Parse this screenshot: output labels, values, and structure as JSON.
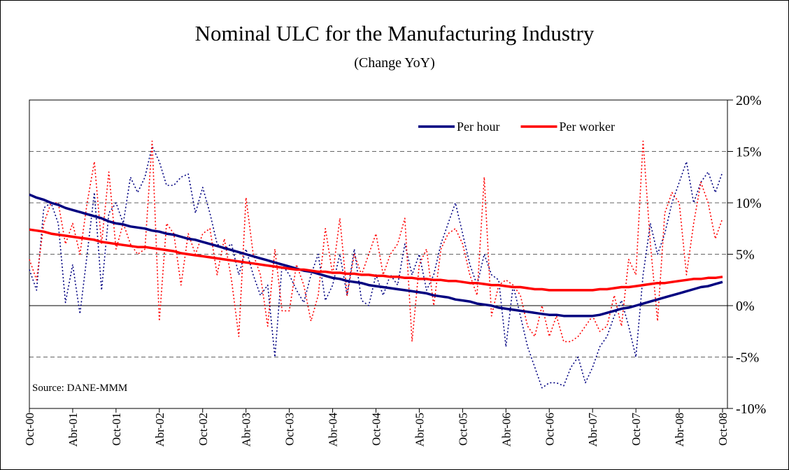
{
  "chart_data": {
    "type": "line",
    "title": "Nominal ULC for the Manufacturing Industry",
    "subtitle": "(Change YoY)",
    "annotation": "Source: DANE-MMM",
    "categories": [
      "Oct-00",
      null,
      null,
      null,
      null,
      null,
      "Abr-01",
      null,
      null,
      null,
      null,
      null,
      "Oct-01",
      null,
      null,
      null,
      null,
      null,
      "Abr-02",
      null,
      null,
      null,
      null,
      null,
      "Oct-02",
      null,
      null,
      null,
      null,
      null,
      "Abr-03",
      null,
      null,
      null,
      null,
      null,
      "Oct-03",
      null,
      null,
      null,
      null,
      null,
      "Abr-04",
      null,
      null,
      null,
      null,
      null,
      "Oct-04",
      null,
      null,
      null,
      null,
      null,
      "Abr-05",
      null,
      null,
      null,
      null,
      null,
      "Oct-05",
      null,
      null,
      null,
      null,
      null,
      "Abr-06",
      null,
      null,
      null,
      null,
      null,
      "Oct-06",
      null,
      null,
      null,
      null,
      null,
      "Abr-07",
      null,
      null,
      null,
      null,
      null,
      "Oct-07",
      null,
      null,
      null,
      null,
      null,
      "Abr-08",
      null,
      null,
      null,
      null,
      null,
      "Oct-08"
    ],
    "series": [
      {
        "color": "#000080",
        "style": "dotted",
        "values": [
          3.5,
          1.5,
          9.5,
          10,
          8,
          0.3,
          4,
          -0.8,
          5,
          11,
          1.5,
          9,
          10,
          8,
          12.5,
          11,
          12.5,
          15.5,
          14,
          11.7,
          11.7,
          12.5,
          12.8,
          9,
          11.5,
          9,
          6,
          5.5,
          6,
          3,
          5.5,
          3,
          1,
          2,
          -5,
          4,
          3,
          1.5,
          0.3,
          3,
          5,
          0.5,
          2,
          5,
          1,
          5.5,
          0.5,
          0,
          3,
          1,
          3,
          2,
          6,
          3,
          5,
          1.5,
          3,
          6,
          8,
          10,
          7,
          4,
          2,
          5,
          3,
          2.5,
          -4,
          2,
          -1,
          -4,
          -6,
          -8,
          -7.5,
          -7.5,
          -7.8,
          -6,
          -5,
          -7.5,
          -6,
          -4,
          -3,
          -1,
          0.5,
          -2,
          -5,
          3,
          8,
          5,
          7,
          10,
          12,
          14,
          10,
          12,
          13,
          11,
          13
        ]
      },
      {
        "color": "#ff0000",
        "style": "dotted",
        "values": [
          4.5,
          2.5,
          8,
          10,
          10,
          6,
          8,
          5,
          10,
          14,
          6,
          13,
          5.5,
          8,
          6,
          5,
          5.5,
          16,
          -1.5,
          8,
          7,
          2,
          7,
          5,
          7,
          7.5,
          3,
          6.5,
          2.5,
          -3,
          10.5,
          5,
          3,
          -2,
          5.5,
          -0.5,
          -0.5,
          4,
          2,
          -1.5,
          1,
          7.5,
          3,
          8.5,
          1,
          5,
          3,
          5,
          7,
          3,
          5,
          6,
          8.5,
          -3.5,
          4,
          5.5,
          0,
          5.5,
          7,
          7.5,
          6,
          3,
          1,
          12.5,
          -1,
          2,
          2.5,
          2,
          1,
          -2,
          -3,
          0,
          -3,
          -1,
          -3.5,
          -3.5,
          -3,
          -2,
          -1,
          -2.5,
          -2,
          1,
          -2,
          4.5,
          3,
          16,
          6,
          -1.5,
          9,
          11,
          10,
          3,
          8,
          12,
          10,
          6.5,
          8.5
        ]
      },
      {
        "name": "Per hour",
        "color": "#000080",
        "style": "solid",
        "values": [
          10.8,
          10.5,
          10.3,
          10.0,
          9.8,
          9.5,
          9.3,
          9.1,
          8.9,
          8.7,
          8.5,
          8.2,
          8.0,
          7.9,
          7.7,
          7.6,
          7.5,
          7.3,
          7.2,
          7.0,
          6.9,
          6.7,
          6.5,
          6.4,
          6.2,
          6.0,
          5.8,
          5.6,
          5.4,
          5.2,
          5.0,
          4.8,
          4.6,
          4.4,
          4.2,
          4.0,
          3.8,
          3.6,
          3.4,
          3.3,
          3.1,
          2.9,
          2.7,
          2.6,
          2.4,
          2.3,
          2.2,
          2.0,
          1.9,
          1.8,
          1.7,
          1.6,
          1.5,
          1.4,
          1.3,
          1.2,
          1.0,
          0.9,
          0.8,
          0.6,
          0.5,
          0.4,
          0.2,
          0.1,
          0.0,
          -0.2,
          -0.3,
          -0.4,
          -0.5,
          -0.6,
          -0.7,
          -0.8,
          -0.9,
          -0.9,
          -1.0,
          -1.0,
          -1.0,
          -1.0,
          -1.0,
          -0.9,
          -0.7,
          -0.5,
          -0.3,
          -0.2,
          0.0,
          0.2,
          0.4,
          0.6,
          0.8,
          1.0,
          1.2,
          1.4,
          1.6,
          1.8,
          1.9,
          2.1,
          2.3
        ]
      },
      {
        "name": "Per worker",
        "color": "#ff0000",
        "style": "solid",
        "values": [
          7.4,
          7.3,
          7.2,
          7.0,
          6.9,
          6.8,
          6.7,
          6.6,
          6.5,
          6.4,
          6.2,
          6.1,
          6.0,
          5.9,
          5.8,
          5.7,
          5.7,
          5.6,
          5.5,
          5.4,
          5.3,
          5.1,
          5.0,
          4.9,
          4.8,
          4.7,
          4.6,
          4.5,
          4.4,
          4.3,
          4.2,
          4.1,
          4.0,
          3.9,
          3.8,
          3.7,
          3.6,
          3.5,
          3.5,
          3.4,
          3.3,
          3.3,
          3.2,
          3.2,
          3.1,
          3.1,
          3.0,
          3.0,
          2.9,
          2.9,
          2.8,
          2.8,
          2.7,
          2.7,
          2.6,
          2.6,
          2.5,
          2.5,
          2.4,
          2.4,
          2.3,
          2.2,
          2.2,
          2.1,
          2.0,
          2.0,
          1.9,
          1.8,
          1.8,
          1.7,
          1.6,
          1.6,
          1.5,
          1.5,
          1.5,
          1.5,
          1.5,
          1.5,
          1.5,
          1.6,
          1.6,
          1.7,
          1.8,
          1.8,
          1.9,
          2.0,
          2.1,
          2.2,
          2.2,
          2.3,
          2.4,
          2.5,
          2.6,
          2.6,
          2.7,
          2.7,
          2.8
        ]
      }
    ],
    "ylim": [
      -10,
      20
    ],
    "yticks": [
      {
        "value": -10,
        "label": "-10%"
      },
      {
        "value": -5,
        "label": "-5%"
      },
      {
        "value": 0,
        "label": "0%"
      },
      {
        "value": 5,
        "label": "5%"
      },
      {
        "value": 10,
        "label": "10%"
      },
      {
        "value": 15,
        "label": "15%"
      },
      {
        "value": 20,
        "label": "20%"
      }
    ],
    "grid": true,
    "legend": "upper right"
  }
}
